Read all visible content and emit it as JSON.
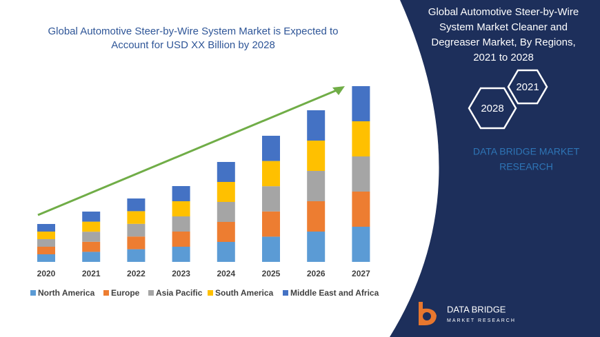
{
  "chart_data": {
    "type": "bar",
    "stacked": true,
    "title": [
      "Global Automotive Steer-by-Wire System Market is Expected to",
      "Account for USD XX Billion by 2028"
    ],
    "categories": [
      "2020",
      "2021",
      "2022",
      "2023",
      "2024",
      "2025",
      "2026",
      "2027"
    ],
    "series": [
      {
        "name": "North America",
        "color": "#5b9bd5",
        "values": [
          11,
          14.6,
          18.4,
          22,
          29,
          36.6,
          44,
          51
        ]
      },
      {
        "name": "Europe",
        "color": "#ed7d31",
        "values": [
          11,
          14.6,
          18.4,
          22,
          29,
          36.6,
          44,
          51
        ]
      },
      {
        "name": "Asia Pacific",
        "color": "#a5a5a5",
        "values": [
          11,
          14.6,
          18.4,
          22,
          29,
          36.6,
          44,
          51
        ]
      },
      {
        "name": "South America",
        "color": "#ffc000",
        "values": [
          11,
          14.6,
          18.4,
          22,
          29,
          36.6,
          44,
          51
        ]
      },
      {
        "name": "Middle East and Africa",
        "color": "#4472c4",
        "values": [
          11,
          14.6,
          18.4,
          22,
          29,
          36.6,
          44,
          51
        ]
      }
    ],
    "ylim": [
      0,
      260
    ],
    "legend": "bottom"
  },
  "panel": {
    "title": [
      "Global Automotive Steer-by-Wire",
      "System Market Cleaner and",
      "Degreaser Market, By Regions,",
      "2021 to 2028"
    ],
    "hex_labels": [
      "2021",
      "2028"
    ],
    "brand": [
      "DATA BRIDGE MARKET",
      "RESEARCH"
    ],
    "logo": [
      "DATA BRIDGE",
      "MARKET RESEARCH"
    ]
  }
}
